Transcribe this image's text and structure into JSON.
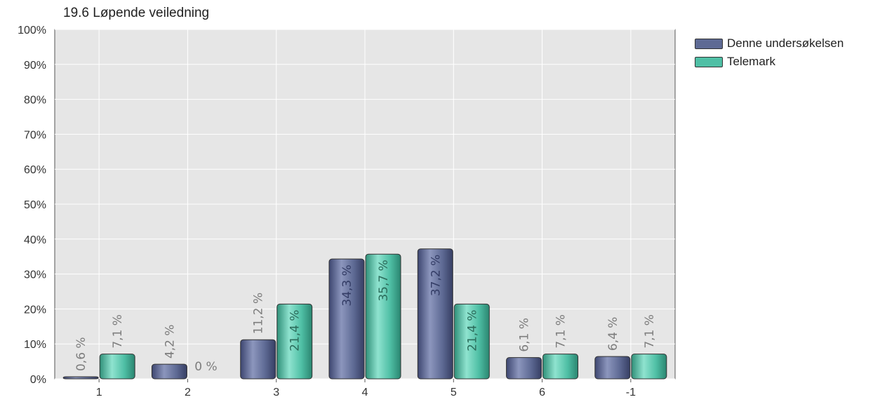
{
  "chart_data": {
    "type": "bar",
    "title": "19.6 Løpende veiledning",
    "categories": [
      "1",
      "2",
      "3",
      "4",
      "5",
      "6",
      "-1"
    ],
    "series": [
      {
        "name": "Denne undersøkelsen",
        "values": [
          0.6,
          4.2,
          11.2,
          34.3,
          37.2,
          6.1,
          6.4
        ],
        "labels": [
          "0,6 %",
          "4,2 %",
          "11,2 %",
          "34,3 %",
          "37,2 %",
          "6,1 %",
          "6,4 %"
        ],
        "color": "#5e6a94"
      },
      {
        "name": "Telemark",
        "values": [
          7.1,
          0,
          21.4,
          35.7,
          21.4,
          7.1,
          7.1
        ],
        "labels": [
          "7,1 %",
          "0 %",
          "21,4 %",
          "35,7 %",
          "21,4 %",
          "7,1 %",
          "7,1 %"
        ],
        "color": "#4fbfa5"
      }
    ],
    "yticks": [
      "0%",
      "10%",
      "20%",
      "30%",
      "40%",
      "50%",
      "60%",
      "70%",
      "80%",
      "90%",
      "100%"
    ],
    "ylim": [
      0,
      100
    ],
    "grid": true,
    "legend": "right"
  }
}
